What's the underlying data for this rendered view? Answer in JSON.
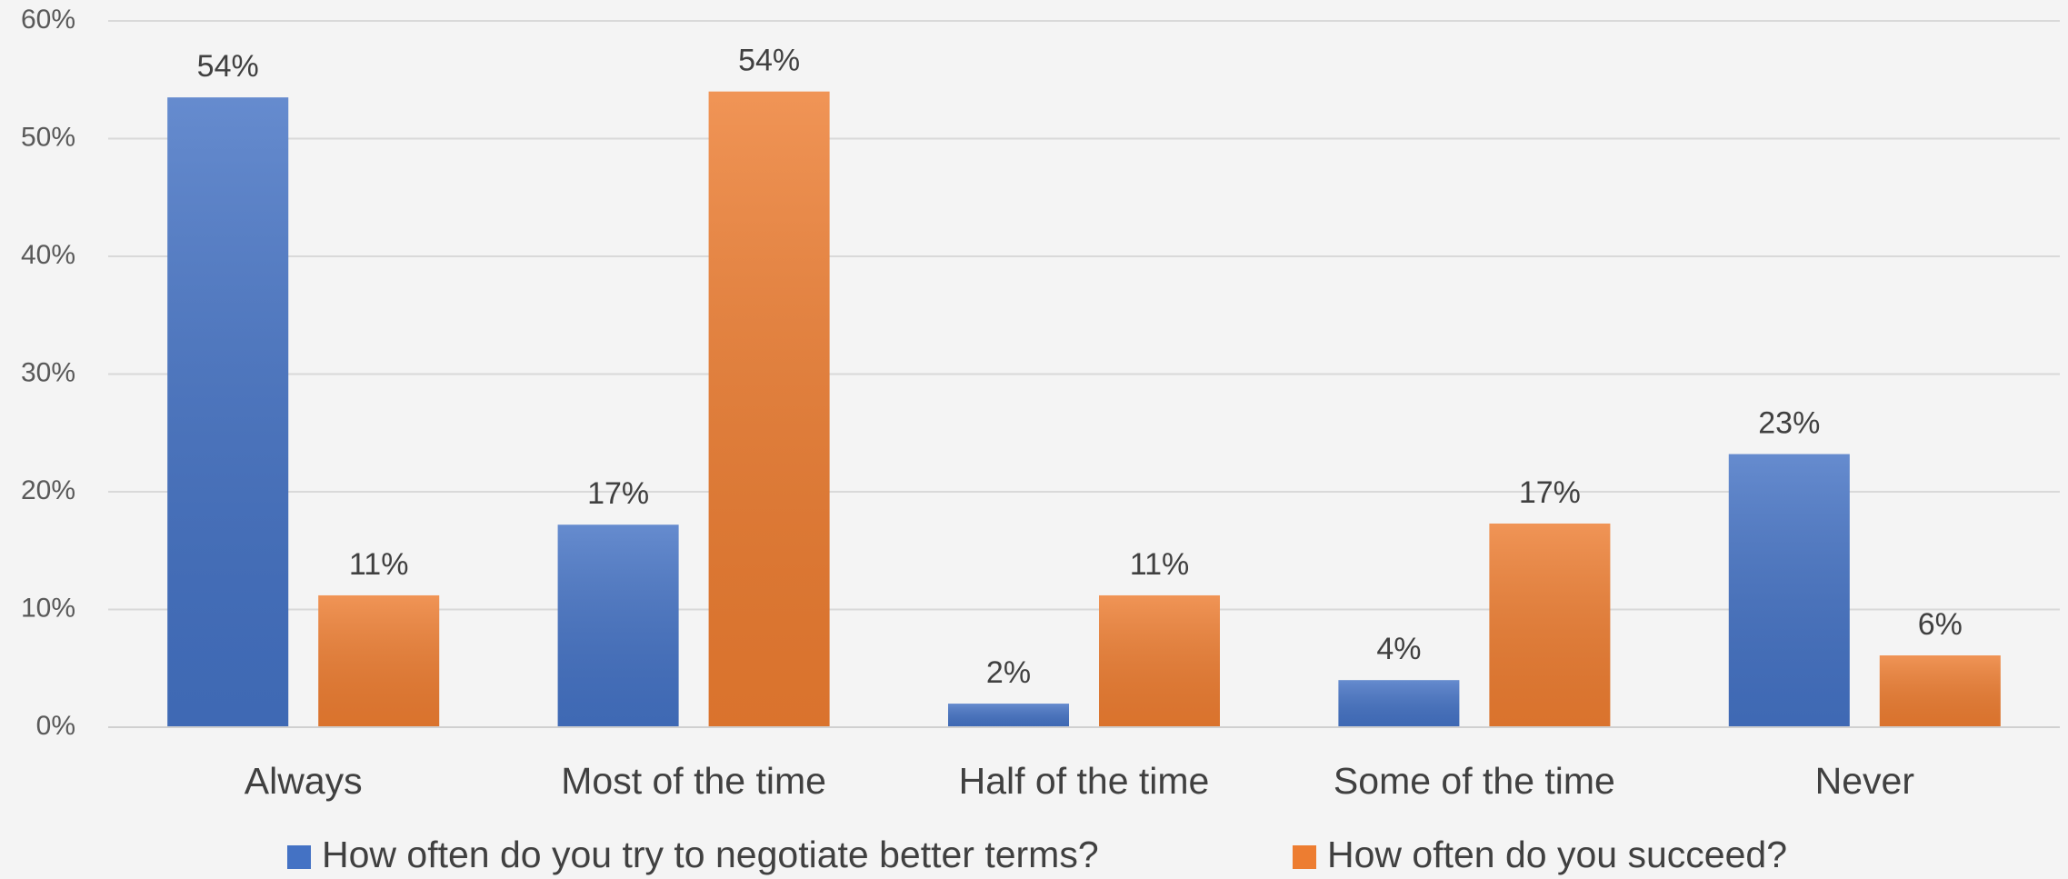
{
  "chart_data": {
    "type": "bar",
    "categories": [
      "Always",
      "Most of the time",
      "Half of the time",
      "Some of the time",
      "Never"
    ],
    "series": [
      {
        "name": "How often do you try to negotiate better terms?",
        "color": "#4472c4",
        "values": [
          53.5,
          17.2,
          2.0,
          4.0,
          23.2
        ],
        "value_labels": [
          "54%",
          "17%",
          "2%",
          "4%",
          "23%"
        ]
      },
      {
        "name": "How often do you succeed?",
        "color": "#ed7d31",
        "values": [
          11.2,
          54.0,
          11.2,
          17.3,
          6.1
        ],
        "value_labels": [
          "11%",
          "54%",
          "11%",
          "17%",
          "6%"
        ]
      }
    ],
    "ylim": [
      0,
      60
    ],
    "yticks": [
      {
        "value": 0,
        "label": "0%"
      },
      {
        "value": 10,
        "label": "10%"
      },
      {
        "value": 20,
        "label": "20%"
      },
      {
        "value": 30,
        "label": "30%"
      },
      {
        "value": 40,
        "label": "40%"
      },
      {
        "value": 50,
        "label": "50%"
      },
      {
        "value": 60,
        "label": "60%"
      }
    ],
    "grid": true,
    "legend": "bottom"
  }
}
